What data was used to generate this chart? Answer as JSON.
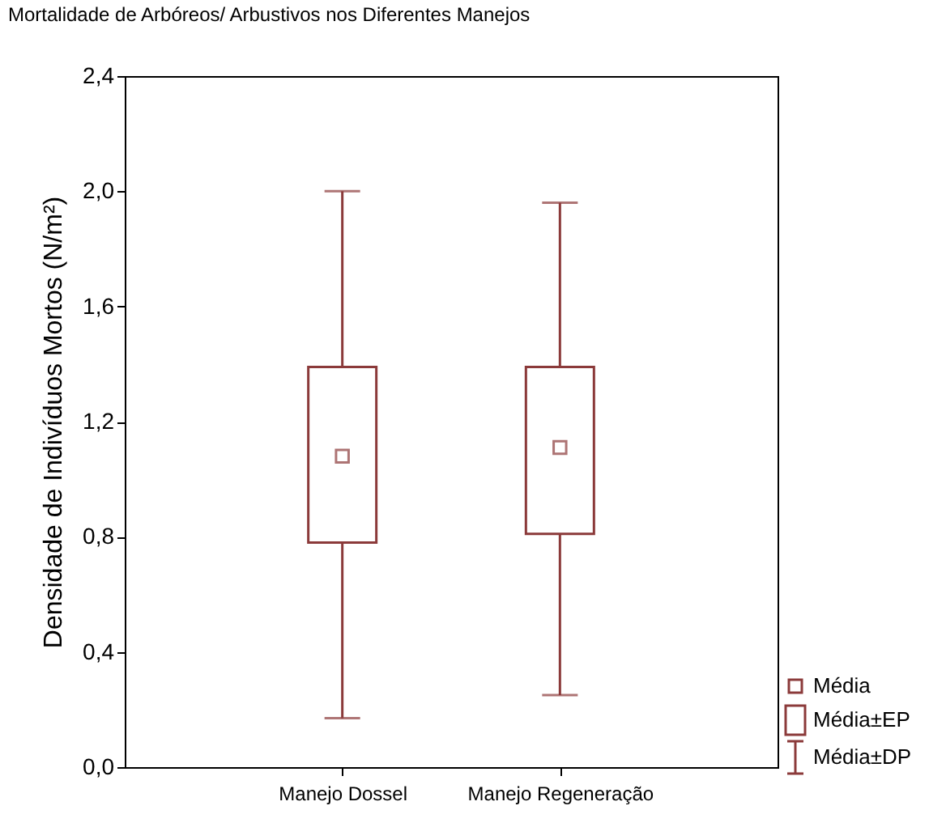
{
  "chart_data": {
    "type": "box",
    "title": "Mortalidade de Arbóreos/ Arbustivos nos Diferentes Manejos",
    "ylabel": "Densidade de Indivíduos Mortos (N/m²)",
    "categories": [
      "Manejo Dossel",
      "Manejo Regeneração"
    ],
    "color": "#8b3a3a",
    "boxes": [
      {
        "low": 0.17,
        "q1": 0.78,
        "median": 1.08,
        "q3": 1.39,
        "high": 2.0
      },
      {
        "low": 0.25,
        "q1": 0.81,
        "median": 1.11,
        "q3": 1.39,
        "high": 1.96
      }
    ],
    "ylim": [
      0,
      2.4
    ],
    "yticks": [
      {
        "value": 0,
        "label": "0,0"
      },
      {
        "value": 0.4,
        "label": "0,4"
      },
      {
        "value": 0.8,
        "label": "0,8"
      },
      {
        "value": 1.2,
        "label": "1,2"
      },
      {
        "value": 1.6,
        "label": "1,6"
      },
      {
        "value": 2.0,
        "label": "2,0"
      },
      {
        "value": 2.4,
        "label": "2,4"
      }
    ],
    "annotations": [
      "Média",
      "Média±EP",
      "Média±DP"
    ]
  }
}
